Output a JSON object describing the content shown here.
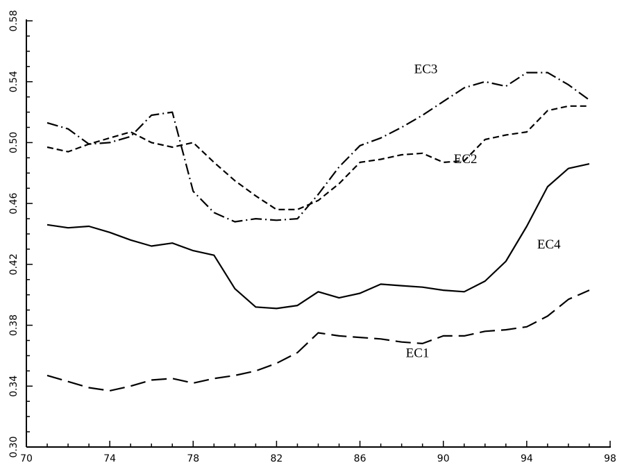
{
  "chart_data": {
    "type": "line",
    "title": "",
    "xlabel": "",
    "ylabel": "",
    "xlim": [
      70,
      98
    ],
    "ylim": [
      0.3,
      0.58
    ],
    "x_ticks": [
      "70",
      "74",
      "78",
      "82",
      "86",
      "90",
      "94",
      "98"
    ],
    "y_ticks": [
      "0.30",
      "0.34",
      "0.38",
      "0.42",
      "0.46",
      "0.50",
      "0.54",
      "0.58"
    ],
    "grid": false,
    "series": [
      {
        "name": "EC1",
        "dash": "long-dash",
        "label_at": [
          88.2,
          0.359
        ],
        "x": [
          71,
          72,
          73,
          74,
          75,
          76,
          77,
          78,
          79,
          80,
          81,
          82,
          83,
          84,
          85,
          86,
          87,
          88,
          89,
          90,
          91,
          92,
          93,
          94,
          95,
          96,
          97
        ],
        "y": [
          0.347,
          0.343,
          0.339,
          0.337,
          0.34,
          0.344,
          0.345,
          0.342,
          0.345,
          0.347,
          0.35,
          0.355,
          0.362,
          0.375,
          0.373,
          0.372,
          0.371,
          0.369,
          0.368,
          0.373,
          0.373,
          0.376,
          0.377,
          0.379,
          0.386,
          0.397,
          0.403
        ]
      },
      {
        "name": "EC2",
        "dash": "short-dash",
        "label_at": [
          90.5,
          0.4866
        ],
        "x": [
          71,
          72,
          73,
          74,
          75,
          76,
          77,
          78,
          79,
          80,
          81,
          82,
          83,
          84,
          85,
          86,
          87,
          88,
          89,
          90,
          91,
          92,
          93,
          94,
          95,
          96,
          97
        ],
        "y": [
          0.497,
          0.494,
          0.499,
          0.503,
          0.507,
          0.5,
          0.497,
          0.5,
          0.487,
          0.475,
          0.465,
          0.456,
          0.456,
          0.462,
          0.473,
          0.487,
          0.489,
          0.492,
          0.493,
          0.487,
          0.488,
          0.502,
          0.505,
          0.507,
          0.521,
          0.524,
          0.524
        ]
      },
      {
        "name": "EC3",
        "dash": "dash-dot",
        "label_at": [
          88.6,
          0.5456
        ],
        "x": [
          71,
          72,
          73,
          74,
          75,
          76,
          77,
          78,
          79,
          80,
          81,
          82,
          83,
          84,
          85,
          86,
          87,
          88,
          89,
          90,
          91,
          92,
          93,
          94,
          95,
          96,
          97
        ],
        "y": [
          0.513,
          0.509,
          0.499,
          0.5,
          0.504,
          0.518,
          0.52,
          0.468,
          0.454,
          0.448,
          0.45,
          0.449,
          0.45,
          0.466,
          0.484,
          0.498,
          0.503,
          0.51,
          0.518,
          0.527,
          0.536,
          0.54,
          0.537,
          0.546,
          0.546,
          0.538,
          0.528
        ]
      },
      {
        "name": "EC4",
        "dash": "solid",
        "label_at": [
          94.5,
          0.4304
        ],
        "x": [
          71,
          72,
          73,
          74,
          75,
          76,
          77,
          78,
          79,
          80,
          81,
          82,
          83,
          84,
          85,
          86,
          87,
          88,
          89,
          90,
          91,
          92,
          93,
          94,
          95,
          96,
          97
        ],
        "y": [
          0.446,
          0.444,
          0.445,
          0.441,
          0.436,
          0.432,
          0.434,
          0.429,
          0.426,
          0.404,
          0.392,
          0.391,
          0.393,
          0.402,
          0.398,
          0.401,
          0.407,
          0.406,
          0.405,
          0.403,
          0.402,
          0.409,
          0.422,
          0.445,
          0.471,
          0.483,
          0.486
        ]
      }
    ]
  }
}
